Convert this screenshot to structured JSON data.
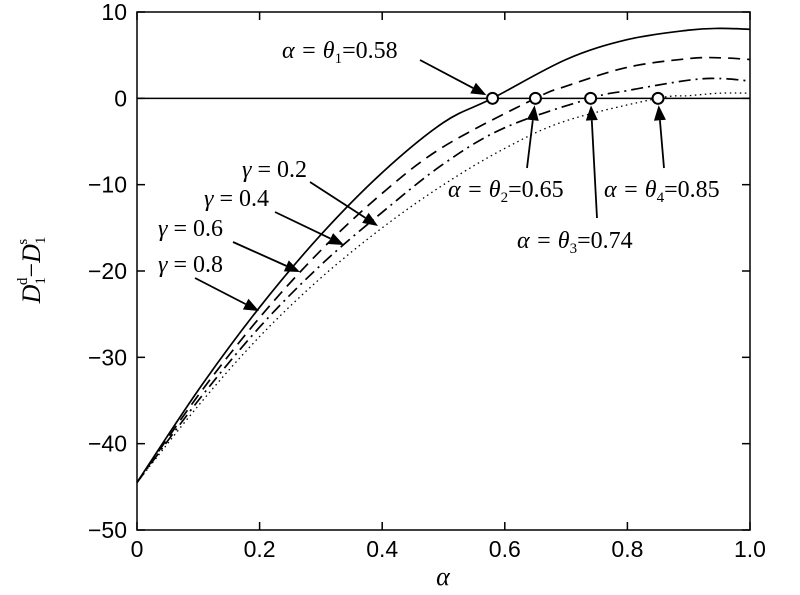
{
  "chart_data": {
    "type": "line",
    "title": "",
    "xlabel": "α",
    "ylabel": {
      "main": "D",
      "sub1": "1",
      "sup1": "d",
      "dash": "−",
      "main2": "D",
      "sub2": "1",
      "sup2": "s"
    },
    "xlim": [
      0,
      1.0
    ],
    "ylim": [
      -50,
      10
    ],
    "x_ticks": [
      0,
      0.2,
      0.4,
      0.6,
      0.8,
      1.0
    ],
    "x_tick_labels": [
      "0",
      "0.2",
      "0.4",
      "0.6",
      "0.8",
      "1.0"
    ],
    "y_ticks": [
      10,
      0,
      -10,
      -20,
      -30,
      -40,
      -50
    ],
    "y_tick_labels": [
      "10",
      "0",
      "−10",
      "−20",
      "−30",
      "−40",
      "−50"
    ],
    "grid": false,
    "reference_line_y": 0,
    "series": [
      {
        "gamma": 0.2,
        "style": "solid",
        "x": [
          0,
          0.1,
          0.2,
          0.3,
          0.4,
          0.5,
          0.58,
          0.7,
          0.8,
          0.9,
          0.95,
          1.0
        ],
        "y": [
          -44.5,
          -33.8,
          -24.2,
          -15.8,
          -8.6,
          -2.8,
          0,
          4.5,
          6.8,
          7.9,
          8.1,
          8.0
        ]
      },
      {
        "gamma": 0.4,
        "style": "dashed",
        "x": [
          0,
          0.1,
          0.2,
          0.3,
          0.4,
          0.5,
          0.65,
          0.7,
          0.8,
          0.9,
          0.95,
          1.0
        ],
        "y": [
          -44.5,
          -34.4,
          -25.4,
          -17.6,
          -11.0,
          -5.6,
          0,
          1.4,
          3.6,
          4.6,
          4.7,
          4.5
        ]
      },
      {
        "gamma": 0.6,
        "style": "dashdot",
        "x": [
          0,
          0.1,
          0.2,
          0.3,
          0.4,
          0.5,
          0.6,
          0.74,
          0.8,
          0.9,
          0.95,
          1.0
        ],
        "y": [
          -44.5,
          -35.0,
          -26.5,
          -19.3,
          -13.2,
          -7.6,
          -3.4,
          0,
          0.9,
          2.1,
          2.3,
          2.0
        ]
      },
      {
        "gamma": 0.8,
        "style": "dotted",
        "x": [
          0,
          0.1,
          0.2,
          0.3,
          0.4,
          0.5,
          0.6,
          0.7,
          0.85,
          0.9,
          0.95,
          1.0
        ],
        "y": [
          -44.5,
          -35.6,
          -27.6,
          -20.8,
          -15.0,
          -10.0,
          -5.8,
          -2.6,
          0,
          0.3,
          0.6,
          0.6
        ]
      }
    ],
    "crossings": [
      {
        "x": 0.58,
        "y": 0,
        "label_lhs": "α = ",
        "theta": "θ",
        "theta_sub": "1",
        "label_rhs": "=0.58"
      },
      {
        "x": 0.65,
        "y": 0,
        "label_lhs": "α = ",
        "theta": "θ",
        "theta_sub": "2",
        "label_rhs": "=0.65"
      },
      {
        "x": 0.74,
        "y": 0,
        "label_lhs": "α = ",
        "theta": "θ",
        "theta_sub": "3",
        "label_rhs": "=0.74"
      },
      {
        "x": 0.85,
        "y": 0,
        "label_lhs": "α = ",
        "theta": "θ",
        "theta_sub": "4",
        "label_rhs": "=0.85"
      }
    ],
    "gamma_labels": [
      {
        "gamma_symbol": "γ",
        "text": " = 0.2"
      },
      {
        "gamma_symbol": "γ",
        "text": " = 0.4"
      },
      {
        "gamma_symbol": "γ",
        "text": " = 0.6"
      },
      {
        "gamma_symbol": "γ",
        "text": " = 0.8"
      }
    ]
  }
}
